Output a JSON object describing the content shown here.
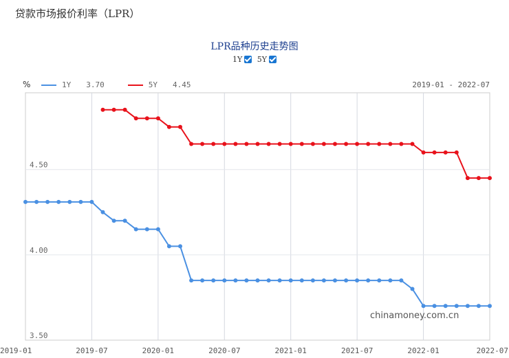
{
  "page_title": "贷款市场报价利率（LPR）",
  "chart_title": "LPR品种历史走势图",
  "toggles": [
    {
      "label": "1Y",
      "checked": true
    },
    {
      "label": "5Y",
      "checked": true
    }
  ],
  "unit": "%",
  "legend": [
    {
      "name": "1Y",
      "value": "3.70",
      "color": "#4a90e2"
    },
    {
      "name": "5Y",
      "value": "4.45",
      "color": "#e8121b"
    }
  ],
  "date_range": "2019-01 - 2022-07",
  "watermark": "chinamoney.com.cn",
  "chart_data": {
    "type": "line",
    "ylim": [
      3.5,
      4.95
    ],
    "yticks": [
      {
        "value": 4.5,
        "label": "4.50"
      },
      {
        "value": 4.0,
        "label": "4.00"
      },
      {
        "value": 3.5,
        "label": "3.50"
      }
    ],
    "xlim": [
      "2019-01",
      "2022-07"
    ],
    "xticks": [
      "2019-01",
      "2019-07",
      "2020-01",
      "2020-07",
      "2021-01",
      "2021-07",
      "2022-01",
      "2022-07"
    ],
    "grid": true,
    "series": [
      {
        "name": "1Y",
        "color": "#4a90e2",
        "points": [
          [
            "2019-01",
            4.31
          ],
          [
            "2019-02",
            4.31
          ],
          [
            "2019-03",
            4.31
          ],
          [
            "2019-04",
            4.31
          ],
          [
            "2019-05",
            4.31
          ],
          [
            "2019-06",
            4.31
          ],
          [
            "2019-07",
            4.31
          ],
          [
            "2019-08",
            4.25
          ],
          [
            "2019-09",
            4.2
          ],
          [
            "2019-10",
            4.2
          ],
          [
            "2019-11",
            4.15
          ],
          [
            "2019-12",
            4.15
          ],
          [
            "2020-01",
            4.15
          ],
          [
            "2020-02",
            4.05
          ],
          [
            "2020-03",
            4.05
          ],
          [
            "2020-04",
            3.85
          ],
          [
            "2020-05",
            3.85
          ],
          [
            "2020-06",
            3.85
          ],
          [
            "2020-07",
            3.85
          ],
          [
            "2020-08",
            3.85
          ],
          [
            "2020-09",
            3.85
          ],
          [
            "2020-10",
            3.85
          ],
          [
            "2020-11",
            3.85
          ],
          [
            "2020-12",
            3.85
          ],
          [
            "2021-01",
            3.85
          ],
          [
            "2021-02",
            3.85
          ],
          [
            "2021-03",
            3.85
          ],
          [
            "2021-04",
            3.85
          ],
          [
            "2021-05",
            3.85
          ],
          [
            "2021-06",
            3.85
          ],
          [
            "2021-07",
            3.85
          ],
          [
            "2021-08",
            3.85
          ],
          [
            "2021-09",
            3.85
          ],
          [
            "2021-10",
            3.85
          ],
          [
            "2021-11",
            3.85
          ],
          [
            "2021-12",
            3.8
          ],
          [
            "2022-01",
            3.7
          ],
          [
            "2022-02",
            3.7
          ],
          [
            "2022-03",
            3.7
          ],
          [
            "2022-04",
            3.7
          ],
          [
            "2022-05",
            3.7
          ],
          [
            "2022-06",
            3.7
          ],
          [
            "2022-07",
            3.7
          ]
        ]
      },
      {
        "name": "5Y",
        "color": "#e8121b",
        "points": [
          [
            "2019-08",
            4.85
          ],
          [
            "2019-09",
            4.85
          ],
          [
            "2019-10",
            4.85
          ],
          [
            "2019-11",
            4.8
          ],
          [
            "2019-12",
            4.8
          ],
          [
            "2020-01",
            4.8
          ],
          [
            "2020-02",
            4.75
          ],
          [
            "2020-03",
            4.75
          ],
          [
            "2020-04",
            4.65
          ],
          [
            "2020-05",
            4.65
          ],
          [
            "2020-06",
            4.65
          ],
          [
            "2020-07",
            4.65
          ],
          [
            "2020-08",
            4.65
          ],
          [
            "2020-09",
            4.65
          ],
          [
            "2020-10",
            4.65
          ],
          [
            "2020-11",
            4.65
          ],
          [
            "2020-12",
            4.65
          ],
          [
            "2021-01",
            4.65
          ],
          [
            "2021-02",
            4.65
          ],
          [
            "2021-03",
            4.65
          ],
          [
            "2021-04",
            4.65
          ],
          [
            "2021-05",
            4.65
          ],
          [
            "2021-06",
            4.65
          ],
          [
            "2021-07",
            4.65
          ],
          [
            "2021-08",
            4.65
          ],
          [
            "2021-09",
            4.65
          ],
          [
            "2021-10",
            4.65
          ],
          [
            "2021-11",
            4.65
          ],
          [
            "2021-12",
            4.65
          ],
          [
            "2022-01",
            4.6
          ],
          [
            "2022-02",
            4.6
          ],
          [
            "2022-03",
            4.6
          ],
          [
            "2022-04",
            4.6
          ],
          [
            "2022-05",
            4.45
          ],
          [
            "2022-06",
            4.45
          ],
          [
            "2022-07",
            4.45
          ]
        ]
      }
    ]
  }
}
